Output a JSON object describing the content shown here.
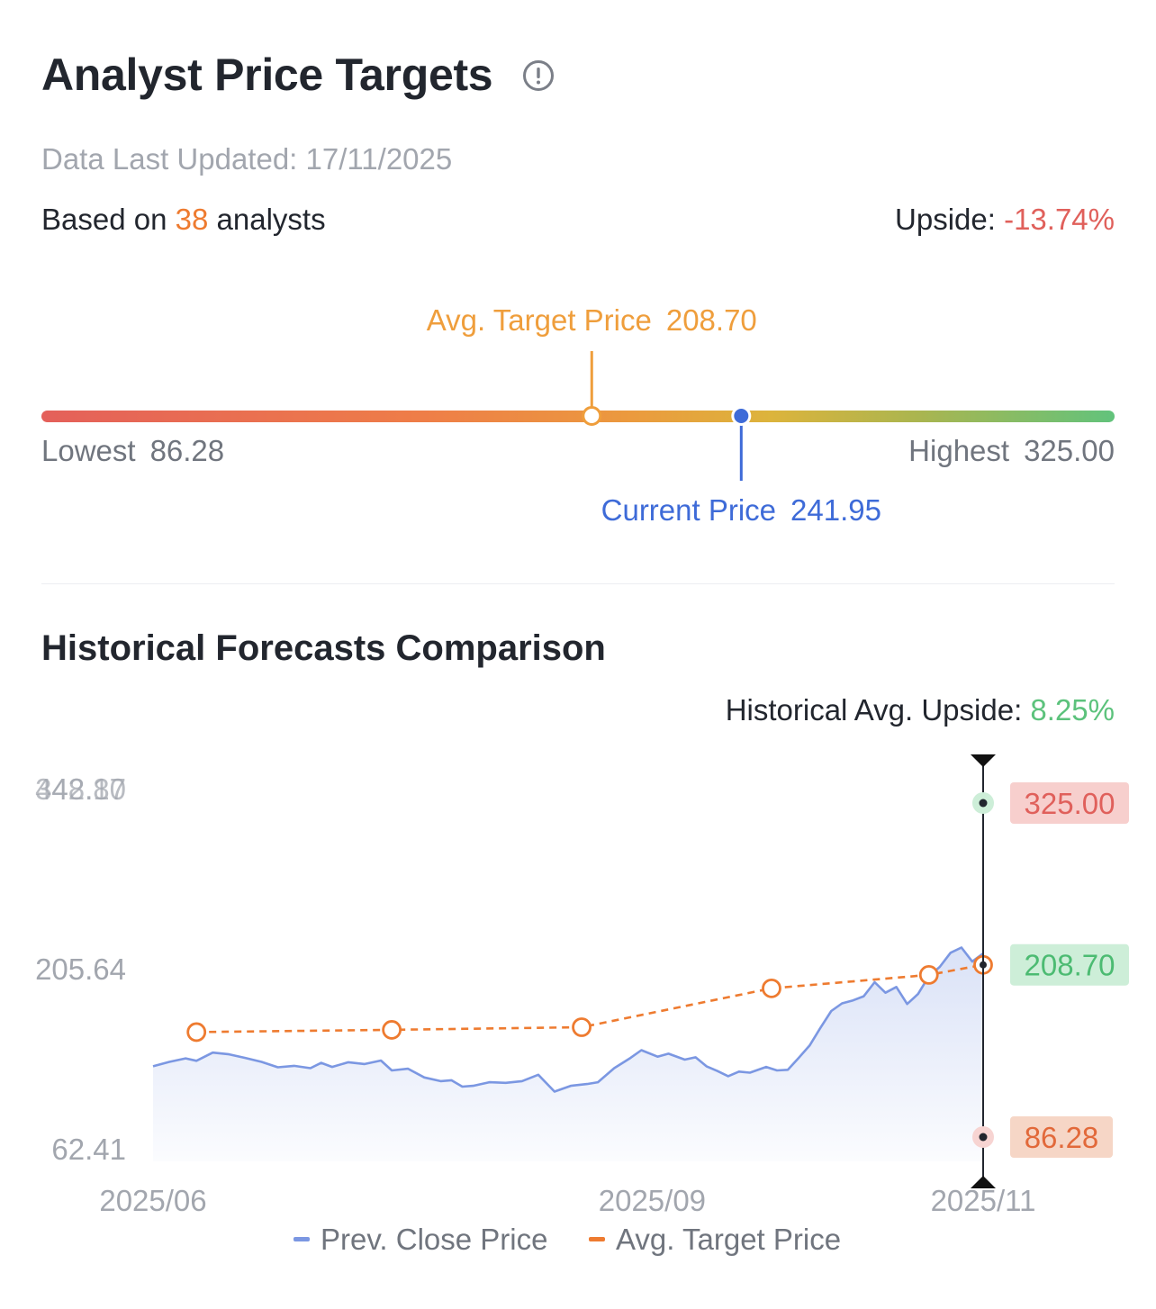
{
  "header": {
    "title": "Analyst Price Targets",
    "updated_label": "Data Last Updated:",
    "updated_value": "17/11/2025",
    "based_prefix": "Based on",
    "analyst_count": "38",
    "based_suffix": "analysts",
    "upside_label": "Upside:",
    "upside_value": "-13.74%"
  },
  "range": {
    "lowest_label": "Lowest",
    "lowest": 86.28,
    "lowest_text": "86.28",
    "highest_label": "Highest",
    "highest": 325.0,
    "highest_text": "325.00",
    "avg_label": "Avg. Target Price",
    "avg": 208.7,
    "avg_text": "208.70",
    "current_label": "Current Price",
    "current": 241.95,
    "current_text": "241.95"
  },
  "history": {
    "title": "Historical Forecasts Comparison",
    "avg_upside_label": "Historical Avg. Upside:",
    "avg_upside_value": "8.25%"
  },
  "chart_data": {
    "type": "line",
    "title": "Historical Forecasts Comparison",
    "ylim": [
      62.41,
      348.87
    ],
    "y_ticks": [
      "62.41",
      "205.64"
    ],
    "y_top_ticks": [
      "348.87",
      "442.10"
    ],
    "x_ticks": [
      {
        "date": "2025-06-01",
        "label": "2025/06"
      },
      {
        "date": "2025-09-01",
        "label": "2025/09"
      },
      {
        "date": "2025-11-01",
        "label": "2025/11"
      }
    ],
    "legend": [
      "Prev. Close Price",
      "Avg. Target Price"
    ],
    "colors": {
      "close": "#7b97e2",
      "target": "#ee7b30",
      "high_tag": "#f7cfcd",
      "avg_tag": "#cdeed8",
      "low_tag": "#f6d6c6"
    },
    "series": [
      {
        "name": "Prev. Close Price",
        "points": [
          [
            "2025-06-01",
            128.0
          ],
          [
            "2025-06-04",
            131.5
          ],
          [
            "2025-06-07",
            134.3
          ],
          [
            "2025-06-09",
            132.4
          ],
          [
            "2025-06-12",
            138.9
          ],
          [
            "2025-06-15",
            137.5
          ],
          [
            "2025-06-18",
            134.7
          ],
          [
            "2025-06-21",
            131.5
          ],
          [
            "2025-06-24",
            127.2
          ],
          [
            "2025-06-27",
            128.4
          ],
          [
            "2025-06-30",
            126.5
          ],
          [
            "2025-07-02",
            130.7
          ],
          [
            "2025-07-04",
            127.5
          ],
          [
            "2025-07-07",
            131.2
          ],
          [
            "2025-07-10",
            129.8
          ],
          [
            "2025-07-13",
            132.6
          ],
          [
            "2025-07-15",
            124.7
          ],
          [
            "2025-07-18",
            126.1
          ],
          [
            "2025-07-21",
            119.1
          ],
          [
            "2025-07-24",
            116.2
          ],
          [
            "2025-07-26",
            116.9
          ],
          [
            "2025-07-28",
            111.8
          ],
          [
            "2025-07-30",
            112.5
          ],
          [
            "2025-08-02",
            115.3
          ],
          [
            "2025-08-05",
            114.8
          ],
          [
            "2025-08-08",
            116.2
          ],
          [
            "2025-08-11",
            121.3
          ],
          [
            "2025-08-14",
            107.9
          ],
          [
            "2025-08-17",
            112.5
          ],
          [
            "2025-08-20",
            113.9
          ],
          [
            "2025-08-22",
            115.3
          ],
          [
            "2025-08-25",
            126.5
          ],
          [
            "2025-08-28",
            134.7
          ],
          [
            "2025-08-30",
            140.8
          ],
          [
            "2025-09-02",
            135.7
          ],
          [
            "2025-09-04",
            138.0
          ],
          [
            "2025-09-07",
            133.3
          ],
          [
            "2025-09-09",
            135.2
          ],
          [
            "2025-09-11",
            128.0
          ],
          [
            "2025-09-13",
            124.3
          ],
          [
            "2025-09-15",
            120.1
          ],
          [
            "2025-09-17",
            123.8
          ],
          [
            "2025-09-19",
            122.9
          ],
          [
            "2025-09-22",
            127.5
          ],
          [
            "2025-09-24",
            124.7
          ],
          [
            "2025-09-26",
            125.2
          ],
          [
            "2025-09-28",
            134.7
          ],
          [
            "2025-09-30",
            144.5
          ],
          [
            "2025-10-02",
            158.5
          ],
          [
            "2025-10-04",
            172.0
          ],
          [
            "2025-10-06",
            178.1
          ],
          [
            "2025-10-08",
            180.4
          ],
          [
            "2025-10-10",
            183.7
          ],
          [
            "2025-10-12",
            194.9
          ],
          [
            "2025-10-14",
            186.5
          ],
          [
            "2025-10-16",
            191.1
          ],
          [
            "2025-10-18",
            177.6
          ],
          [
            "2025-10-20",
            185.5
          ],
          [
            "2025-10-22",
            199.6
          ],
          [
            "2025-10-24",
            207.1
          ],
          [
            "2025-10-26",
            218.3
          ],
          [
            "2025-10-28",
            222.5
          ],
          [
            "2025-10-30",
            211.3
          ],
          [
            "2025-11-01",
            217.8
          ]
        ]
      },
      {
        "name": "Avg. Target Price",
        "points": [
          [
            "2025-06-09",
            155.2
          ],
          [
            "2025-07-15",
            157.0
          ],
          [
            "2025-08-19",
            159.1
          ],
          [
            "2025-09-23",
            190.0
          ],
          [
            "2025-10-22",
            200.7
          ],
          [
            "2025-11-01",
            208.7
          ]
        ]
      }
    ],
    "tags": {
      "high": "325.00",
      "avg": "208.70",
      "low": "86.28"
    }
  }
}
